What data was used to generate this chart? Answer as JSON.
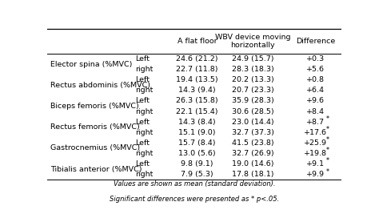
{
  "rows": [
    [
      "Elector spina (%MVC)",
      "Left",
      "24.6 (21.2)",
      "24.9 (15.7)",
      "+0.3"
    ],
    [
      "Elector spina (%MVC)",
      "right",
      "22.7 (11.8)",
      "28.3 (18.3)",
      "+5.6"
    ],
    [
      "Rectus abdominis (%MVC)",
      "Left",
      "19.4 (13.5)",
      "20.2 (13.3)",
      "+0.8"
    ],
    [
      "Rectus abdominis (%MVC)",
      "right",
      "14.3 (9.4)",
      "20.7 (23.3)",
      "+6.4"
    ],
    [
      "Biceps femoris (%MVC)",
      "Left",
      "26.3 (15.8)",
      "35.9 (28.3)",
      "+9.6"
    ],
    [
      "Biceps femoris (%MVC)",
      "right",
      "22.1 (15.4)",
      "30.6 (28.5)",
      "+8.4"
    ],
    [
      "Rectus femoris (%MVC)",
      "Left",
      "14.3 (8.4)",
      "23.0 (14.4)",
      "+8.7*"
    ],
    [
      "Rectus femoris (%MVC)",
      "right",
      "15.1 (9.0)",
      "32.7 (37.3)",
      "+17.6*"
    ],
    [
      "Gastrocnemius (%MVC)",
      "Left",
      "15.7 (8.4)",
      "41.5 (23.8)",
      "+25.9*"
    ],
    [
      "Gastrocnemius (%MVC)",
      "right",
      "13.0 (5.6)",
      "32.7 (26.9)",
      "+19.8*"
    ],
    [
      "Tibialis anterior (%MVC)",
      "Left",
      "9.8 (9.1)",
      "19.0 (14.6)",
      "+9.1*"
    ],
    [
      "Tibialis anterior (%MVC)",
      "right",
      "7.9 (5.3)",
      "17.8 (18.1)",
      "+9.9*"
    ]
  ],
  "col_header_1": "A flat floor",
  "col_header_2": "WBV device moving\nhorizontally",
  "col_header_3": "Difference",
  "footnote1": "Values are shown as mean (standard deviation).",
  "footnote2": "Significant differences were presented as * p<.05.",
  "bg_color": "#ffffff",
  "font_size": 6.8,
  "header_font_size": 6.8
}
